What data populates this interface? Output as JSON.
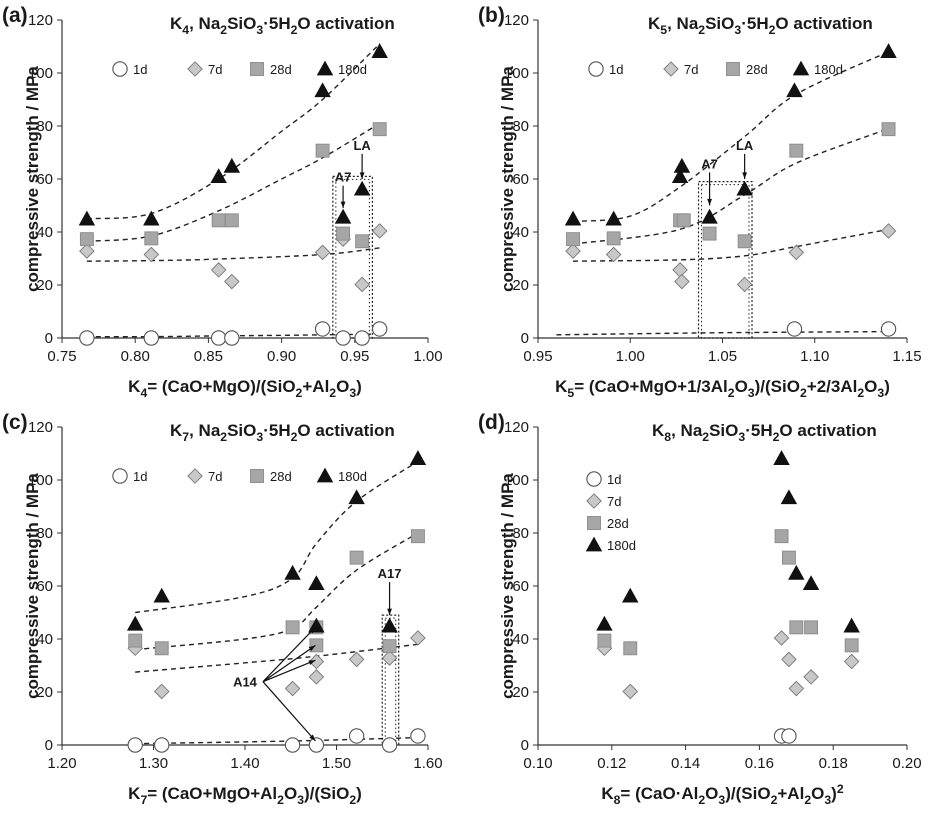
{
  "chart_data": [
    {
      "type": "scatter",
      "panel": "(a)",
      "title": "K<sub>4</sub>, Na<sub>2</sub>SiO<sub>3</sub>·5H<sub>2</sub>O activation",
      "xlabel": "K<sub>4</sub>= (CaO+MgO)/(SiO<sub>2</sub>+Al<sub>2</sub>O<sub>3</sub>)",
      "ylabel": "compressive strength / MPa",
      "xlim": [
        0.75,
        1.0
      ],
      "ylim": [
        0,
        120
      ],
      "xticks": [
        0.75,
        0.8,
        0.85,
        0.9,
        0.95,
        1.0
      ],
      "xtick_labels": [
        "0.75",
        "0.80",
        "0.85",
        "0.90",
        "0.95",
        "1.00"
      ],
      "yticks": [
        0,
        20,
        40,
        60,
        80,
        100,
        120
      ],
      "legend": "top",
      "series": [
        {
          "name": "1d",
          "marker": "circle",
          "x": [
            0.767,
            0.811,
            0.857,
            0.866,
            0.928,
            0.942,
            0.955,
            0.967
          ],
          "y": [
            0,
            0,
            0,
            0,
            3.4,
            0,
            0,
            3.4
          ]
        },
        {
          "name": "7d",
          "marker": "diamond",
          "x": [
            0.767,
            0.811,
            0.857,
            0.866,
            0.928,
            0.942,
            0.955,
            0.967
          ],
          "y": [
            32.8,
            31.5,
            25.7,
            21.3,
            32.3,
            37.3,
            20.2,
            40.4
          ]
        },
        {
          "name": "28d",
          "marker": "square",
          "x": [
            0.767,
            0.811,
            0.857,
            0.866,
            0.928,
            0.942,
            0.955,
            0.967
          ],
          "y": [
            37.3,
            37.6,
            44.4,
            44.4,
            70.7,
            39.4,
            36.5,
            78.8
          ]
        },
        {
          "name": "180d",
          "marker": "triangle",
          "x": [
            0.767,
            0.811,
            0.857,
            0.866,
            0.928,
            0.942,
            0.955,
            0.967
          ],
          "y": [
            44.9,
            44.9,
            60.9,
            64.8,
            93.3,
            45.6,
            56.2,
            108.1
          ]
        }
      ],
      "trendlines": [
        {
          "points": [
            [
              0.767,
              0.5
            ],
            [
              0.811,
              0.5
            ],
            [
              0.857,
              0.8
            ],
            [
              0.9,
              1.0
            ],
            [
              0.928,
              1.2
            ],
            [
              0.967,
              1.5
            ]
          ]
        },
        {
          "points": [
            [
              0.767,
              29.0
            ],
            [
              0.811,
              29.2
            ],
            [
              0.857,
              29.8
            ],
            [
              0.928,
              31.5
            ],
            [
              0.967,
              34.0
            ]
          ]
        },
        {
          "points": [
            [
              0.767,
              36.5
            ],
            [
              0.811,
              38.5
            ],
            [
              0.857,
              48.0
            ],
            [
              0.9,
              60.0
            ],
            [
              0.928,
              68.0
            ],
            [
              0.967,
              81.0
            ]
          ]
        },
        {
          "points": [
            [
              0.767,
              45.0
            ],
            [
              0.811,
              47.0
            ],
            [
              0.857,
              60.0
            ],
            [
              0.9,
              78.0
            ],
            [
              0.928,
              90.0
            ],
            [
              0.967,
              111.0
            ]
          ]
        }
      ],
      "boxes": [
        {
          "x": [
            0.935,
            0.962
          ],
          "y": [
            0,
            61
          ]
        }
      ],
      "annotations": [
        {
          "text": "A7",
          "x": 0.942,
          "y": 59,
          "arrow_to": [
            0.942,
            49
          ]
        },
        {
          "text": "LA",
          "x": 0.955,
          "y": 71,
          "arrow_to": [
            0.955,
            60
          ]
        }
      ]
    },
    {
      "type": "scatter",
      "panel": "(b)",
      "title": "K<sub>5</sub>, Na<sub>2</sub>SiO<sub>3</sub>·5H<sub>2</sub>O activation",
      "xlabel": "K<sub>5</sub>= (CaO+MgO+1/3Al<sub>2</sub>O<sub>3</sub>)/(SiO<sub>2</sub>+2/3Al<sub>2</sub>O<sub>3</sub>)",
      "ylabel": "compressive strength / MPa",
      "xlim": [
        0.95,
        1.15
      ],
      "ylim": [
        0,
        120
      ],
      "xticks": [
        0.95,
        1.0,
        1.05,
        1.1,
        1.15
      ],
      "xtick_labels": [
        "0.95",
        "1.00",
        "1.05",
        "1.10",
        "1.15"
      ],
      "yticks": [
        0,
        20,
        40,
        60,
        80,
        100,
        120
      ],
      "legend": "top",
      "series": [
        {
          "name": "1d",
          "marker": "circle",
          "x": [
            1.089,
            1.14
          ],
          "y": [
            3.4,
            3.4
          ]
        },
        {
          "name": "7d",
          "marker": "diamond",
          "x": [
            0.969,
            0.991,
            1.027,
            1.028,
            1.062,
            1.09,
            1.14
          ],
          "y": [
            32.8,
            31.5,
            25.7,
            21.3,
            20.2,
            32.3,
            40.4
          ]
        },
        {
          "name": "28d",
          "marker": "square",
          "x": [
            0.969,
            0.991,
            1.027,
            1.029,
            1.043,
            1.062,
            1.09,
            1.14
          ],
          "y": [
            37.3,
            37.6,
            44.4,
            44.4,
            39.4,
            36.5,
            70.7,
            78.8
          ]
        },
        {
          "name": "180d",
          "marker": "triangle",
          "x": [
            0.969,
            0.991,
            1.027,
            1.028,
            1.043,
            1.062,
            1.089,
            1.14
          ],
          "y": [
            44.9,
            44.9,
            60.9,
            64.8,
            45.6,
            56.2,
            93.3,
            108.1
          ]
        }
      ],
      "trendlines": [
        {
          "points": [
            [
              0.96,
              1.2
            ],
            [
              1.05,
              2.0
            ],
            [
              1.14,
              2.4
            ]
          ]
        },
        {
          "points": [
            [
              0.969,
              29.0
            ],
            [
              1.027,
              29.5
            ],
            [
              1.062,
              31.0
            ],
            [
              1.09,
              34.5
            ],
            [
              1.14,
              41.0
            ]
          ]
        },
        {
          "points": [
            [
              0.969,
              35.5
            ],
            [
              1.027,
              41.0
            ],
            [
              1.062,
              54.0
            ],
            [
              1.09,
              66.0
            ],
            [
              1.14,
              79.0
            ]
          ]
        },
        {
          "points": [
            [
              0.969,
              44.0
            ],
            [
              1.0,
              46.0
            ],
            [
              1.027,
              57.0
            ],
            [
              1.062,
              76.0
            ],
            [
              1.09,
              92.0
            ],
            [
              1.14,
              108.0
            ]
          ]
        }
      ],
      "boxes": [
        {
          "x": [
            1.037,
            1.066
          ],
          "y": [
            0,
            59
          ]
        }
      ],
      "annotations": [
        {
          "text": "A7",
          "x": 1.043,
          "y": 64,
          "arrow_to": [
            1.043,
            50
          ]
        },
        {
          "text": "LA",
          "x": 1.062,
          "y": 71,
          "arrow_to": [
            1.062,
            60
          ]
        }
      ]
    },
    {
      "type": "scatter",
      "panel": "(c)",
      "title": "K<sub>7</sub>, Na<sub>2</sub>SiO<sub>3</sub>·5H<sub>2</sub>O activation",
      "xlabel": "K<sub>7</sub>= (CaO+MgO+Al<sub>2</sub>O<sub>3</sub>)/(SiO<sub>2</sub>)",
      "ylabel": "compressive strength / MPa",
      "xlim": [
        1.2,
        1.6
      ],
      "ylim": [
        0,
        120
      ],
      "xticks": [
        1.2,
        1.3,
        1.4,
        1.5,
        1.6
      ],
      "xtick_labels": [
        "1.20",
        "1.30",
        "1.40",
        "1.50",
        "1.60"
      ],
      "yticks": [
        0,
        20,
        40,
        60,
        80,
        100,
        120
      ],
      "legend": "top",
      "series": [
        {
          "name": "1d",
          "marker": "circle",
          "x": [
            1.28,
            1.309,
            1.452,
            1.478,
            1.522,
            1.558,
            1.589
          ],
          "y": [
            0,
            0,
            0,
            0,
            3.4,
            0,
            3.4
          ]
        },
        {
          "name": "7d",
          "marker": "diamond",
          "x": [
            1.28,
            1.309,
            1.452,
            1.478,
            1.478,
            1.522,
            1.558,
            1.589
          ],
          "y": [
            36.5,
            20.2,
            21.3,
            25.7,
            31.5,
            32.3,
            32.8,
            40.4
          ]
        },
        {
          "name": "28d",
          "marker": "square",
          "x": [
            1.28,
            1.309,
            1.452,
            1.478,
            1.478,
            1.522,
            1.558,
            1.589
          ],
          "y": [
            39.4,
            36.5,
            44.4,
            37.6,
            44.4,
            70.7,
            37.3,
            78.8
          ]
        },
        {
          "name": "180d",
          "marker": "triangle",
          "x": [
            1.28,
            1.309,
            1.452,
            1.478,
            1.478,
            1.522,
            1.558,
            1.589
          ],
          "y": [
            45.6,
            56.2,
            64.8,
            60.9,
            44.9,
            93.3,
            44.9,
            108.1
          ]
        }
      ],
      "trendlines": [
        {
          "points": [
            [
              1.28,
              0.5
            ],
            [
              1.45,
              1.5
            ],
            [
              1.589,
              2.8
            ]
          ]
        },
        {
          "points": [
            [
              1.28,
              27.5
            ],
            [
              1.4,
              31.0
            ],
            [
              1.478,
              33.5
            ],
            [
              1.589,
              38.0
            ]
          ]
        },
        {
          "points": [
            [
              1.28,
              36.0
            ],
            [
              1.4,
              40.0
            ],
            [
              1.452,
              44.0
            ],
            [
              1.478,
              52.0
            ],
            [
              1.522,
              66.0
            ],
            [
              1.589,
              80.0
            ]
          ]
        },
        {
          "points": [
            [
              1.28,
              50.0
            ],
            [
              1.4,
              56.0
            ],
            [
              1.452,
              63.0
            ],
            [
              1.478,
              76.0
            ],
            [
              1.522,
              92.0
            ],
            [
              1.589,
              107.0
            ]
          ]
        }
      ],
      "boxes": [
        {
          "x": [
            1.55,
            1.568
          ],
          "y": [
            0,
            49
          ]
        }
      ],
      "annotations": [
        {
          "text": "A17",
          "x": 1.558,
          "y": 63,
          "arrow_to": [
            1.558,
            49
          ]
        },
        {
          "text": "A14",
          "x": 1.4,
          "y": 22,
          "arrows_to": [
            [
              1.477,
              44.5
            ],
            [
              1.477,
              37.6
            ],
            [
              1.477,
              32
            ],
            [
              1.477,
              1.5
            ]
          ]
        }
      ]
    },
    {
      "type": "scatter",
      "panel": "(d)",
      "title": "K<sub>8</sub>, Na<sub>2</sub>SiO<sub>3</sub>·5H<sub>2</sub>O activation",
      "xlabel": "K<sub>8</sub>= (CaO·Al<sub>2</sub>O<sub>3</sub>)/(SiO<sub>2</sub>+Al<sub>2</sub>O<sub>3</sub>)<sup>2</sup>",
      "ylabel": "compressive strength / MPa",
      "xlim": [
        0.1,
        0.2
      ],
      "ylim": [
        0,
        120
      ],
      "xticks": [
        0.1,
        0.12,
        0.14,
        0.16,
        0.18,
        0.2
      ],
      "xtick_labels": [
        "0.10",
        "0.12",
        "0.14",
        "0.16",
        "0.18",
        "0.20"
      ],
      "yticks": [
        0,
        20,
        40,
        60,
        80,
        100,
        120
      ],
      "legend": "left",
      "series": [
        {
          "name": "1d",
          "marker": "circle",
          "x": [
            0.166,
            0.168
          ],
          "y": [
            3.4,
            3.4
          ]
        },
        {
          "name": "7d",
          "marker": "diamond",
          "x": [
            0.118,
            0.125,
            0.166,
            0.168,
            0.17,
            0.174,
            0.185
          ],
          "y": [
            36.5,
            20.2,
            40.4,
            32.3,
            21.3,
            25.7,
            31.5
          ]
        },
        {
          "name": "28d",
          "marker": "square",
          "x": [
            0.118,
            0.125,
            0.166,
            0.168,
            0.17,
            0.174,
            0.185
          ],
          "y": [
            39.4,
            36.5,
            78.8,
            70.7,
            44.4,
            44.4,
            37.6
          ]
        },
        {
          "name": "180d",
          "marker": "triangle",
          "x": [
            0.118,
            0.125,
            0.166,
            0.168,
            0.17,
            0.174,
            0.185
          ],
          "y": [
            45.6,
            56.2,
            108.1,
            93.3,
            64.8,
            60.9,
            44.9
          ]
        }
      ],
      "trendlines": [],
      "boxes": [],
      "annotations": []
    }
  ]
}
